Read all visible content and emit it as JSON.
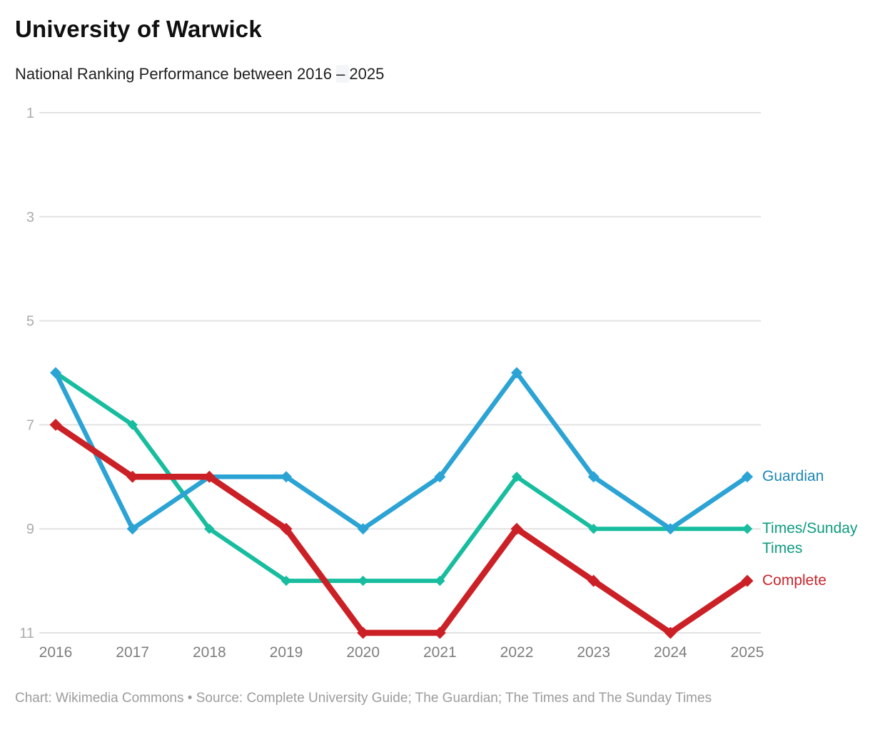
{
  "header": {
    "title": "University of Warwick",
    "subtitle_before": "National Ranking Performance between 2016 ",
    "subtitle_dash": "– ",
    "subtitle_after": "2025"
  },
  "chart_data": {
    "type": "line",
    "title": "University of Warwick",
    "subtitle": "National Ranking Performance between 2016 – 2025",
    "x": [
      2016,
      2017,
      2018,
      2019,
      2020,
      2021,
      2022,
      2023,
      2024,
      2025
    ],
    "series": [
      {
        "name": "Guardian",
        "values": [
          6,
          9,
          8,
          8,
          9,
          8,
          6,
          8,
          9,
          8
        ],
        "color": "#2ba3d4",
        "label_color": "#1b87b8"
      },
      {
        "name": "Times/Sunday Times",
        "values": [
          6,
          7,
          9,
          10,
          10,
          10,
          8,
          9,
          9,
          9
        ],
        "color": "#17bd9e",
        "label_color": "#0e9b80"
      },
      {
        "name": "Complete",
        "values": [
          7,
          8,
          8,
          9,
          11,
          11,
          9,
          10,
          11,
          10
        ],
        "color": "#cb2026",
        "label_color": "#c9252b"
      }
    ],
    "xlabel": "",
    "ylabel": "",
    "yticks": [
      1,
      3,
      5,
      7,
      9,
      11
    ],
    "ylim": [
      1,
      11
    ],
    "y_axis_inverted": true,
    "grid": "horizontal",
    "legend_position": "right",
    "marker": "diamond",
    "axis_tick_color_y": "#acacac",
    "axis_tick_color_x": "#7e7e7e",
    "gridline_color": "#e2e2e2"
  },
  "footer": {
    "text": "Chart: Wikimedia Commons • Source: Complete University Guide; The Guardian; The Times and The Sunday Times"
  }
}
